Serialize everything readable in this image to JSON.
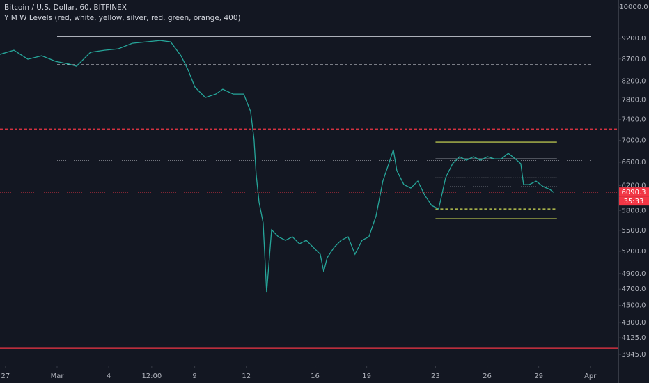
{
  "chart_data": {
    "type": "line",
    "title": "Bitcoin / U.S. Dollar, 60, BITFINEX",
    "subtitle": "Y M W Levels (red, white, yellow, silver, red, green, orange, 400)",
    "log_scale": true,
    "color": "#26a69a",
    "xlim": [
      -0.32,
      35.63
    ],
    "ylim": [
      3830,
      10190
    ],
    "xticks": [
      {
        "value": 0,
        "label": "27"
      },
      {
        "value": 3,
        "label": "Mar"
      },
      {
        "value": 6,
        "label": "4"
      },
      {
        "value": 8.5,
        "label": "12:00"
      },
      {
        "value": 11,
        "label": "9"
      },
      {
        "value": 14,
        "label": "12"
      },
      {
        "value": 18,
        "label": "16"
      },
      {
        "value": 21,
        "label": "19"
      },
      {
        "value": 25,
        "label": "23"
      },
      {
        "value": 28,
        "label": "26"
      },
      {
        "value": 31,
        "label": "29"
      },
      {
        "value": 34,
        "label": "Apr"
      }
    ],
    "yticks": [
      {
        "value": 10000,
        "label": "10000.0"
      },
      {
        "value": 9200,
        "label": "9200.0"
      },
      {
        "value": 8700,
        "label": "8700.0"
      },
      {
        "value": 8200,
        "label": "8200.0"
      },
      {
        "value": 7800,
        "label": "7800.0"
      },
      {
        "value": 7400,
        "label": "7400.0"
      },
      {
        "value": 7000,
        "label": "7000.0"
      },
      {
        "value": 6600,
        "label": "6600.0"
      },
      {
        "value": 6200,
        "label": "6200.0"
      },
      {
        "value": 5800,
        "label": "5800.0"
      },
      {
        "value": 5500,
        "label": "5500.0"
      },
      {
        "value": 5200,
        "label": "5200.0"
      },
      {
        "value": 4900,
        "label": "4900.0"
      },
      {
        "value": 4700,
        "label": "4700.0"
      },
      {
        "value": 4500,
        "label": "4500.0"
      },
      {
        "value": 4300,
        "label": "4300.0"
      },
      {
        "value": 4125,
        "label": "4125.0"
      },
      {
        "value": 3945,
        "label": "3945.0"
      }
    ],
    "x": [
      -0.32,
      0.49,
      1.3,
      2.11,
      2.91,
      3.72,
      4.13,
      4.94,
      5.75,
      6.56,
      7.37,
      8.18,
      8.99,
      9.6,
      10.2,
      10.61,
      11.01,
      11.62,
      12.23,
      12.63,
      13.24,
      13.85,
      14.25,
      14.45,
      14.57,
      14.74,
      14.98,
      15.18,
      15.47,
      15.87,
      16.28,
      16.68,
      17.09,
      17.49,
      17.89,
      18.3,
      18.5,
      18.7,
      19.11,
      19.51,
      19.92,
      20.32,
      20.73,
      21.13,
      21.54,
      21.94,
      22.35,
      22.55,
      22.75,
      23.16,
      23.56,
      23.97,
      24.37,
      24.78,
      25.18,
      25.59,
      25.99,
      26.4,
      26.8,
      27.21,
      27.61,
      28.02,
      28.42,
      28.83,
      29.23,
      29.64,
      29.96,
      30.12,
      30.45,
      30.85,
      31.26,
      31.66,
      31.86
    ],
    "values": [
      8810,
      8909,
      8695,
      8777,
      8647,
      8583,
      8535,
      8859,
      8909,
      8942,
      9076,
      9110,
      9144,
      9110,
      8777,
      8456,
      8070,
      7848,
      7922,
      8026,
      7922,
      7922,
      7561,
      7018,
      6394,
      5934,
      5611,
      4657,
      5508,
      5406,
      5356,
      5406,
      5306,
      5356,
      5257,
      5160,
      4925,
      5112,
      5257,
      5356,
      5406,
      5160,
      5356,
      5406,
      5716,
      6275,
      6636,
      6825,
      6453,
      6217,
      6159,
      6275,
      6045,
      5879,
      5824,
      6334,
      6575,
      6699,
      6636,
      6699,
      6636,
      6699,
      6661,
      6661,
      6761,
      6661,
      6575,
      6217,
      6217,
      6275,
      6183,
      6136,
      6090
    ],
    "levels": [
      {
        "value": 9247,
        "color": "#e0e3eb",
        "dash": "solid",
        "x": [
          3,
          34.05
        ]
      },
      {
        "value": 8566,
        "color": "#e0e3eb",
        "dash": "dashed",
        "x": [
          3,
          34.05
        ]
      },
      {
        "value": 7215,
        "color": "#f23645",
        "dash": "dashed",
        "x": [
          -0.32,
          35.63
        ]
      },
      {
        "value": 6630,
        "color": "#9598a1",
        "dash": "dotted",
        "x": [
          3,
          34.05
        ]
      },
      {
        "value": 6966,
        "color": "#d4e157",
        "dash": "solid",
        "x": [
          25,
          32.06
        ]
      },
      {
        "value": 6660,
        "color": "#b2b5be",
        "dash": "solid",
        "x": [
          25,
          32.06
        ]
      },
      {
        "value": 6334,
        "color": "#b2b5be",
        "dash": "dotted",
        "x": [
          25,
          32.06
        ]
      },
      {
        "value": 6183,
        "color": "#9598a1",
        "dash": "dotted",
        "x": [
          25.59,
          32.06
        ]
      },
      {
        "value": 5824,
        "color": "#d4e157",
        "dash": "dashed",
        "x": [
          25,
          32.06
        ]
      },
      {
        "value": 5674,
        "color": "#d4e157",
        "dash": "solid",
        "x": [
          25,
          32.06
        ]
      },
      {
        "value": 4012,
        "color": "#f23645",
        "dash": "solid",
        "x": [
          -0.32,
          35.63
        ]
      }
    ],
    "last_price": 6090.3,
    "countdown": "35:33"
  }
}
